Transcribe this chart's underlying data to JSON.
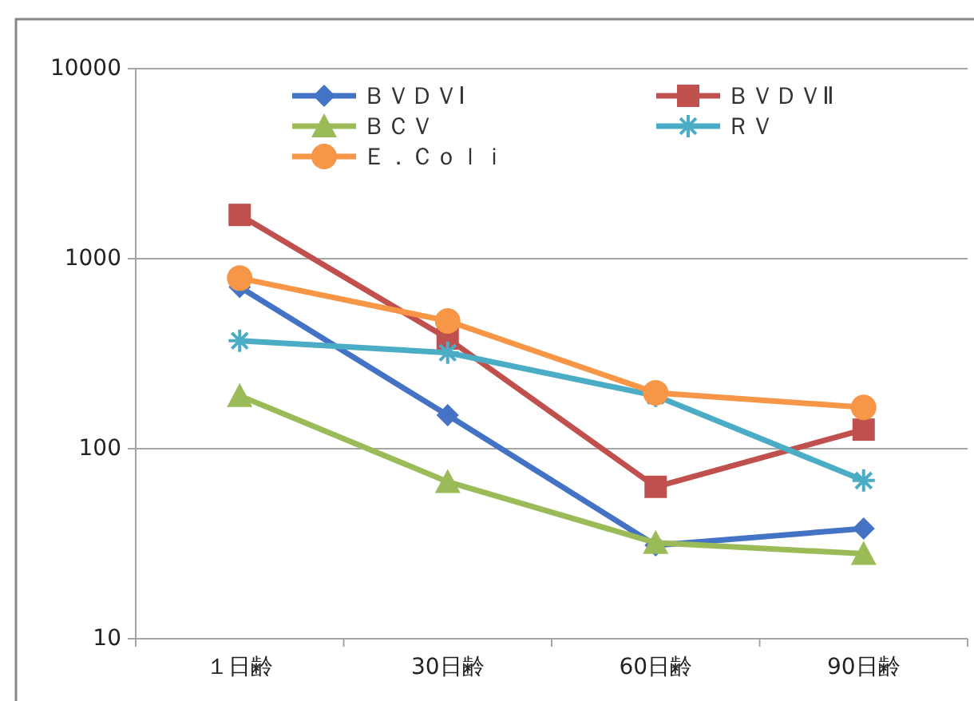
{
  "chart_data": {
    "type": "line",
    "categories": [
      "１日齢",
      "30日齢",
      "60日齢",
      "90日齢"
    ],
    "series": [
      {
        "name": "ＢＶＤＶⅠ",
        "color": "#4472c4",
        "marker": "diamond",
        "values": [
          710,
          150,
          31,
          38
        ]
      },
      {
        "name": "ＢＶＤＶⅡ",
        "color": "#c0504d",
        "marker": "square",
        "values": [
          1700,
          380,
          63,
          126
        ]
      },
      {
        "name": "ＢＣＶ",
        "color": "#9bbb59",
        "marker": "triangle",
        "values": [
          190,
          67,
          32,
          28
        ]
      },
      {
        "name": "ＲＶ",
        "color": "#4bacc6",
        "marker": "cross",
        "values": [
          370,
          320,
          190,
          68
        ]
      },
      {
        "name": "Ｅ．Ｃｏｌｉ",
        "color": "#f79646",
        "marker": "circle",
        "values": [
          790,
          470,
          197,
          165
        ]
      }
    ],
    "log": true,
    "ylim": [
      10,
      10000
    ],
    "yticks": [
      10,
      100,
      1000,
      10000
    ],
    "grid": "y",
    "legend": "top",
    "line_style": "solid"
  }
}
